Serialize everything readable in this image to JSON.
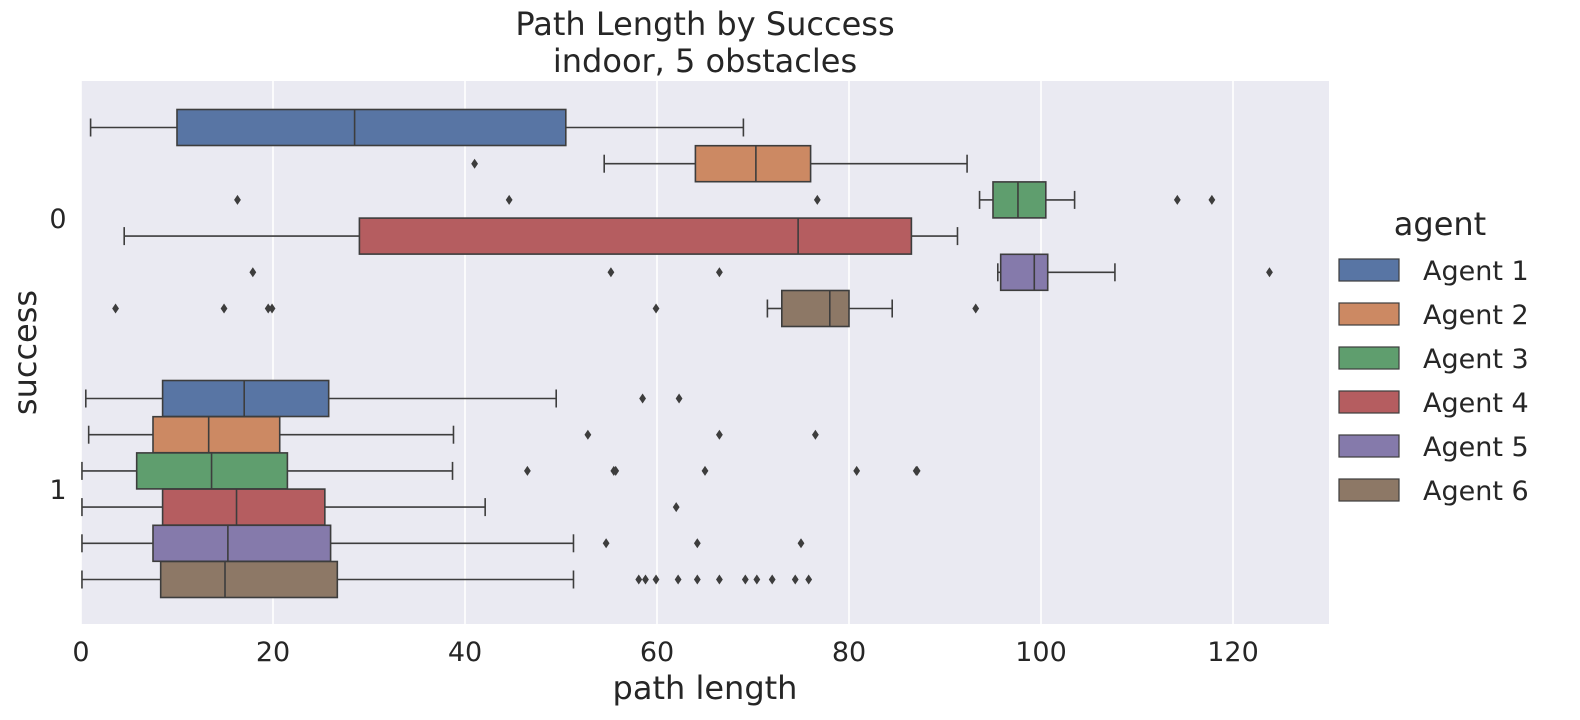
{
  "chart_data": {
    "type": "box",
    "orientation": "horizontal",
    "title": "Path Length by Success",
    "subtitle": "indoor, 5 obstacles",
    "xlabel": "path length",
    "ylabel": "success",
    "xlim": [
      0,
      130
    ],
    "xticks": [
      0,
      20,
      40,
      60,
      80,
      100,
      120
    ],
    "xtick_labels": [
      "0",
      "20",
      "40",
      "60",
      "80",
      "100",
      "120"
    ],
    "categories": [
      "0",
      "1"
    ],
    "grid": true,
    "background": "#eaeaf2",
    "legend": {
      "title": "agent",
      "placement": "right",
      "entries": [
        "Agent 1",
        "Agent 2",
        "Agent 3",
        "Agent 4",
        "Agent 5",
        "Agent 6"
      ]
    },
    "series": [
      {
        "name": "Agent 1",
        "color": "#5875a4",
        "boxes": [
          {
            "category": "0",
            "whislo": 1.0,
            "q1": 10.0,
            "med": 28.5,
            "q3": 50.5,
            "whishi": 69.0,
            "fliers": []
          },
          {
            "category": "1",
            "whislo": 0.5,
            "q1": 8.5,
            "med": 17.0,
            "q3": 25.8,
            "whishi": 49.5,
            "fliers": [
              58.5,
              62.3
            ]
          }
        ]
      },
      {
        "name": "Agent 2",
        "color": "#cc8963",
        "boxes": [
          {
            "category": "0",
            "whislo": 54.5,
            "q1": 64.0,
            "med": 70.3,
            "q3": 76.0,
            "whishi": 92.3,
            "fliers": [
              41.0
            ]
          },
          {
            "category": "1",
            "whislo": 0.8,
            "q1": 7.5,
            "med": 13.3,
            "q3": 20.7,
            "whishi": 38.8,
            "fliers": [
              52.8,
              66.5,
              76.5
            ]
          }
        ]
      },
      {
        "name": "Agent 3",
        "color": "#5f9e6e",
        "boxes": [
          {
            "category": "0",
            "whislo": 93.6,
            "q1": 95.0,
            "med": 97.6,
            "q3": 100.5,
            "whishi": 103.5,
            "fliers": [
              16.3,
              44.6,
              76.7,
              114.2,
              117.8
            ]
          },
          {
            "category": "1",
            "whislo": 0.1,
            "q1": 5.8,
            "med": 13.6,
            "q3": 21.5,
            "whishi": 38.7,
            "fliers": [
              46.5,
              55.5,
              55.7,
              65.0,
              80.8,
              87.0,
              87.1
            ]
          }
        ]
      },
      {
        "name": "Agent 4",
        "color": "#b55d60",
        "boxes": [
          {
            "category": "0",
            "whislo": 4.5,
            "q1": 29.0,
            "med": 74.7,
            "q3": 86.5,
            "whishi": 91.3,
            "fliers": []
          },
          {
            "category": "1",
            "whislo": 0.1,
            "q1": 8.5,
            "med": 16.2,
            "q3": 25.4,
            "whishi": 42.1,
            "fliers": [
              62.0
            ]
          }
        ]
      },
      {
        "name": "Agent 5",
        "color": "#857aab",
        "boxes": [
          {
            "category": "0",
            "whislo": 95.5,
            "q1": 95.8,
            "med": 99.3,
            "q3": 100.7,
            "whishi": 107.7,
            "fliers": [
              17.9,
              55.2,
              66.5,
              123.8
            ]
          },
          {
            "category": "1",
            "whislo": 0.1,
            "q1": 7.5,
            "med": 15.3,
            "q3": 26.0,
            "whishi": 51.3,
            "fliers": [
              54.7,
              64.2,
              75.0
            ]
          }
        ]
      },
      {
        "name": "Agent 6",
        "color": "#8d7866",
        "boxes": [
          {
            "category": "0",
            "whislo": 71.5,
            "q1": 73.0,
            "med": 78.0,
            "q3": 80.0,
            "whishi": 84.5,
            "fliers": [
              3.6,
              14.9,
              19.5,
              19.9,
              59.9,
              93.2
            ]
          },
          {
            "category": "1",
            "whislo": 0.1,
            "q1": 8.3,
            "med": 15.0,
            "q3": 26.7,
            "whishi": 51.3,
            "fliers": [
              58.1,
              58.8,
              59.9,
              62.2,
              64.2,
              66.5,
              69.2,
              70.4,
              72.0,
              74.4,
              75.8
            ]
          }
        ]
      }
    ]
  }
}
